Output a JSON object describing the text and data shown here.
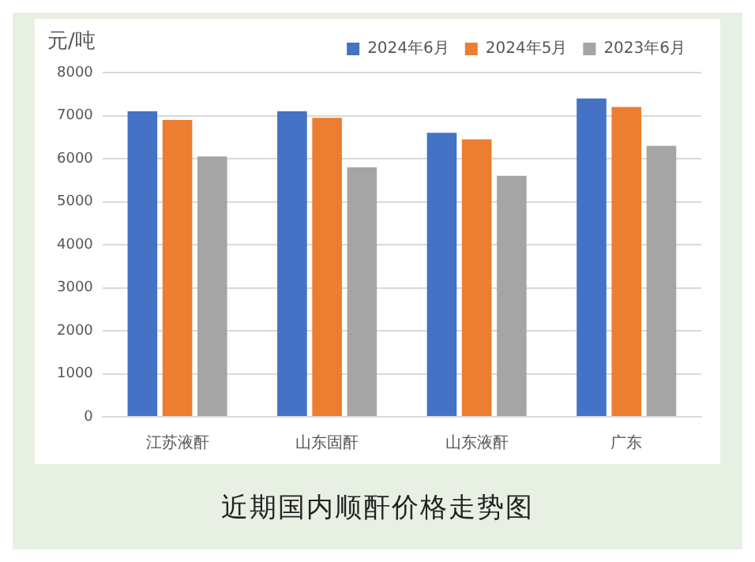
{
  "chart_data": {
    "type": "bar",
    "title": "近期国内顺酐价格走势图",
    "ylabel": "元/吨",
    "categories": [
      "江苏液酐",
      "山东固酐",
      "山东液酐",
      "广东"
    ],
    "series": [
      {
        "name": "2024年6月",
        "color": "#4472c4",
        "values": [
          7100,
          7100,
          6600,
          7400
        ]
      },
      {
        "name": "2024年5月",
        "color": "#ed7d31",
        "values": [
          6900,
          6950,
          6450,
          7200
        ]
      },
      {
        "name": "2023年6月",
        "color": "#a5a5a5",
        "values": [
          6050,
          5800,
          5600,
          6300
        ]
      }
    ],
    "ylim": [
      0,
      8000
    ],
    "yticks": [
      0,
      1000,
      2000,
      3000,
      4000,
      5000,
      6000,
      7000,
      8000
    ],
    "grid": "y",
    "legend": "top right"
  }
}
